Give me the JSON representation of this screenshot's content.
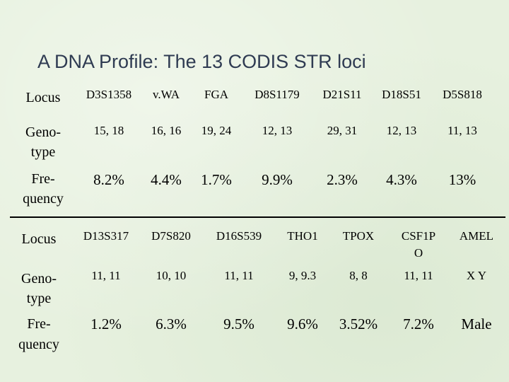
{
  "title": "A DNA Profile: The 13 CODIS STR loci",
  "table1": {
    "row_locus_label": "Locus",
    "row_genotype_label_1": "Geno-",
    "row_genotype_label_2": "type",
    "row_frequency_label_1": "Fre-",
    "row_frequency_label_2": "quency",
    "loci": [
      "D3S1358",
      "v.WA",
      "FGA",
      "D8S1179",
      "D21S11",
      "D18S51",
      "D5S818"
    ],
    "genotypes": [
      "15, 18",
      "16, 16",
      "19, 24",
      "12, 13",
      "29, 31",
      "12, 13",
      "11, 13"
    ],
    "frequencies": [
      "8.2%",
      "4.4%",
      "1.7%",
      "9.9%",
      "2.3%",
      "4.3%",
      "13%"
    ]
  },
  "table2": {
    "row_locus_label": "Locus",
    "row_genotype_label_1": "Geno-",
    "row_genotype_label_2": "type",
    "row_frequency_label_1": "Fre-",
    "row_frequency_label_2": "quency",
    "loci": [
      "D13S317",
      "D7S820",
      "D16S539",
      "THO1",
      "TPOX",
      "CSF1P",
      "AMEL"
    ],
    "loci_extra": [
      "",
      "",
      "",
      "",
      "",
      "O",
      ""
    ],
    "genotypes": [
      "11, 11",
      "10, 10",
      "11, 11",
      "9, 9.3",
      "8, 8",
      "11, 11",
      "X Y"
    ],
    "frequencies": [
      "1.2%",
      "6.3%",
      "9.5%",
      "9.6%",
      "3.52%",
      "7.2%",
      "Male"
    ]
  }
}
